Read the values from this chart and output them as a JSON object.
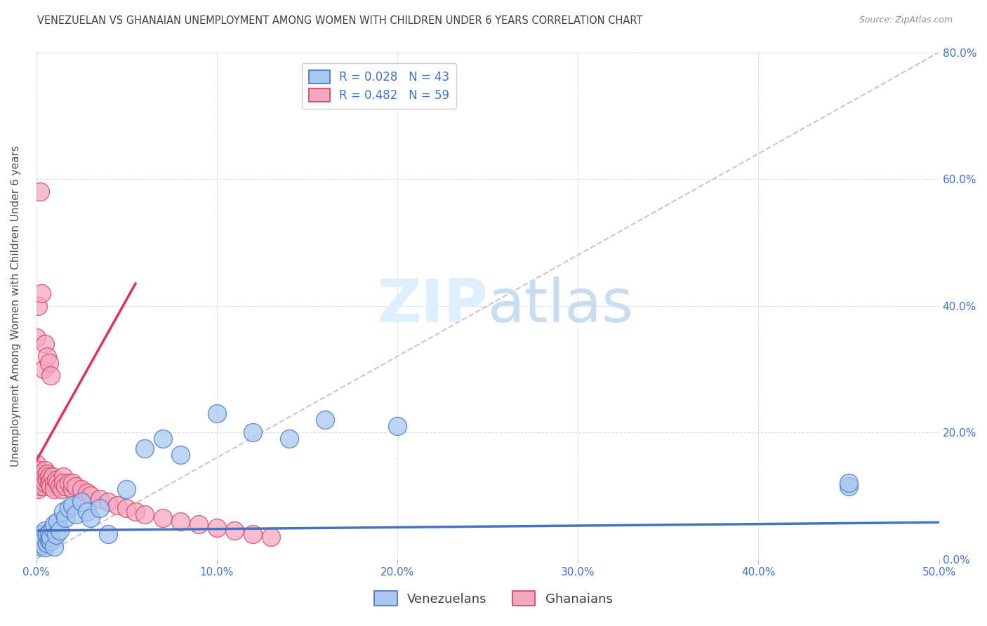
{
  "title": "VENEZUELAN VS GHANAIAN UNEMPLOYMENT AMONG WOMEN WITH CHILDREN UNDER 6 YEARS CORRELATION CHART",
  "source": "Source: ZipAtlas.com",
  "ylabel": "Unemployment Among Women with Children Under 6 years",
  "legend_label_1": "R = 0.028   N = 43",
  "legend_label_2": "R = 0.482   N = 59",
  "legend_bottom_1": "Venezuelans",
  "legend_bottom_2": "Ghanaians",
  "color_venezuelan_fill": "#a8c8f0",
  "color_venezuelan_edge": "#4472c4",
  "color_ghanaian_fill": "#f4a8c0",
  "color_ghanaian_edge": "#d04060",
  "color_venezuelan_line": "#4472c4",
  "color_ghanaian_line": "#e03060",
  "color_diagonal": "#c8c8c8",
  "color_text_blue": "#4472c4",
  "color_grid": "#d8d8d8",
  "watermark_color": "#ddeeff",
  "xlim": [
    0.0,
    0.5
  ],
  "ylim": [
    0.0,
    0.8
  ],
  "x_ticks": [
    0.0,
    0.1,
    0.2,
    0.3,
    0.4,
    0.5
  ],
  "x_labels": [
    "0.0%",
    "10.0%",
    "20.0%",
    "30.0%",
    "40.0%",
    "50.0%"
  ],
  "y_ticks": [
    0.0,
    0.2,
    0.4,
    0.6,
    0.8
  ],
  "y_labels": [
    "0.0%",
    "20.0%",
    "40.0%",
    "60.0%",
    "80.0%"
  ],
  "venezuelan_x": [
    0.0,
    0.001,
    0.002,
    0.002,
    0.003,
    0.003,
    0.004,
    0.004,
    0.005,
    0.005,
    0.006,
    0.006,
    0.007,
    0.007,
    0.008,
    0.008,
    0.009,
    0.01,
    0.01,
    0.011,
    0.012,
    0.013,
    0.015,
    0.016,
    0.018,
    0.02,
    0.022,
    0.025,
    0.028,
    0.03,
    0.035,
    0.04,
    0.05,
    0.06,
    0.07,
    0.08,
    0.1,
    0.12,
    0.14,
    0.16,
    0.2,
    0.45,
    0.45
  ],
  "venezuelan_y": [
    0.03,
    0.025,
    0.02,
    0.035,
    0.028,
    0.04,
    0.022,
    0.032,
    0.018,
    0.045,
    0.025,
    0.038,
    0.03,
    0.042,
    0.028,
    0.035,
    0.048,
    0.02,
    0.055,
    0.038,
    0.06,
    0.045,
    0.075,
    0.065,
    0.08,
    0.085,
    0.07,
    0.09,
    0.075,
    0.065,
    0.08,
    0.04,
    0.11,
    0.175,
    0.19,
    0.165,
    0.23,
    0.2,
    0.19,
    0.22,
    0.21,
    0.115,
    0.12
  ],
  "ghanaian_x": [
    0.0,
    0.0,
    0.001,
    0.001,
    0.002,
    0.002,
    0.002,
    0.003,
    0.003,
    0.004,
    0.004,
    0.005,
    0.005,
    0.005,
    0.006,
    0.006,
    0.007,
    0.007,
    0.008,
    0.008,
    0.009,
    0.01,
    0.01,
    0.011,
    0.012,
    0.013,
    0.014,
    0.015,
    0.015,
    0.016,
    0.018,
    0.02,
    0.02,
    0.022,
    0.025,
    0.028,
    0.03,
    0.035,
    0.04,
    0.045,
    0.05,
    0.055,
    0.06,
    0.07,
    0.08,
    0.09,
    0.1,
    0.11,
    0.12,
    0.13,
    0.0,
    0.001,
    0.002,
    0.003,
    0.004,
    0.005,
    0.006,
    0.007,
    0.008
  ],
  "ghanaian_y": [
    0.15,
    0.12,
    0.14,
    0.11,
    0.135,
    0.125,
    0.115,
    0.13,
    0.12,
    0.125,
    0.115,
    0.14,
    0.13,
    0.12,
    0.135,
    0.125,
    0.13,
    0.12,
    0.125,
    0.115,
    0.13,
    0.12,
    0.11,
    0.125,
    0.12,
    0.115,
    0.11,
    0.13,
    0.12,
    0.115,
    0.12,
    0.11,
    0.12,
    0.115,
    0.11,
    0.105,
    0.1,
    0.095,
    0.09,
    0.085,
    0.08,
    0.075,
    0.07,
    0.065,
    0.06,
    0.055,
    0.05,
    0.045,
    0.04,
    0.035,
    0.35,
    0.4,
    0.58,
    0.42,
    0.3,
    0.34,
    0.32,
    0.31,
    0.29
  ],
  "ven_trend_x": [
    0.0,
    0.5
  ],
  "ven_trend_y": [
    0.045,
    0.058
  ],
  "gha_trend_x": [
    0.0,
    0.055
  ],
  "gha_trend_y": [
    0.155,
    0.435
  ]
}
